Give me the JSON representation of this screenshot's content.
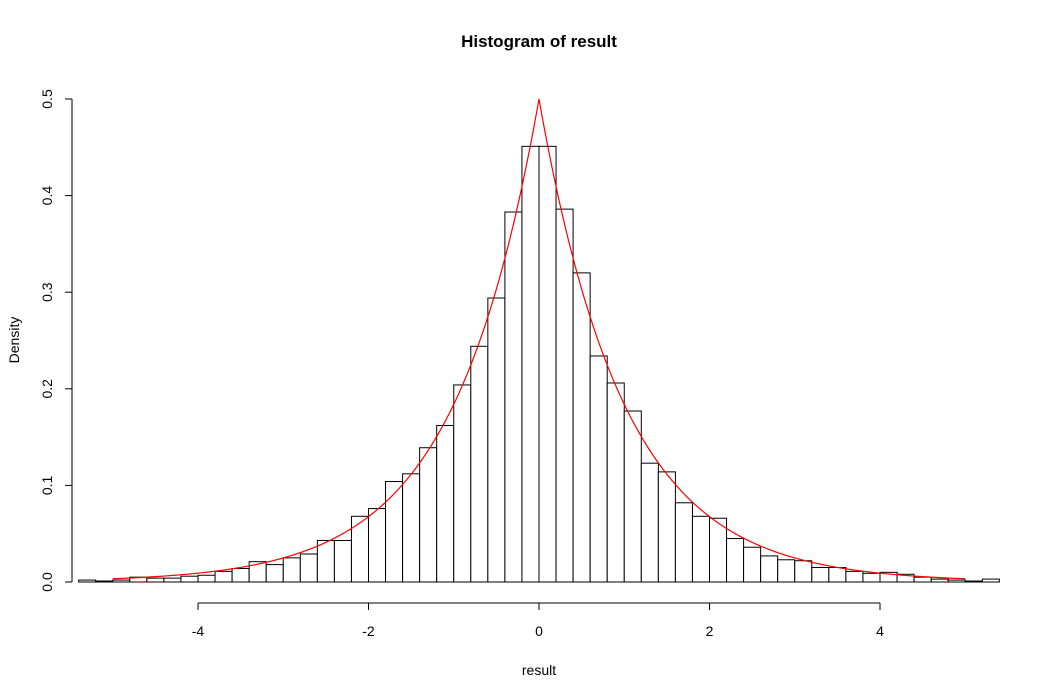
{
  "chart_data": {
    "type": "bar",
    "subtype": "histogram",
    "title": "Histogram of result",
    "xlabel": "result",
    "ylabel": "Density",
    "xlim": [
      -5.4,
      5.4
    ],
    "ylim": [
      0,
      0.5
    ],
    "xticks": [
      -4,
      -2,
      0,
      2,
      4
    ],
    "xtick_labels": [
      "-4",
      "-2",
      "0",
      "2",
      "4"
    ],
    "yticks": [
      0.0,
      0.1,
      0.2,
      0.3,
      0.4,
      0.5
    ],
    "ytick_labels": [
      "0.0",
      "0.1",
      "0.2",
      "0.3",
      "0.4",
      "0.5"
    ],
    "bin_width": 0.2,
    "bin_start": -5.4,
    "densities": [
      0.002,
      0.001,
      0.002,
      0.005,
      0.004,
      0.004,
      0.006,
      0.007,
      0.011,
      0.014,
      0.021,
      0.018,
      0.025,
      0.029,
      0.043,
      0.043,
      0.068,
      0.076,
      0.104,
      0.112,
      0.139,
      0.162,
      0.204,
      0.244,
      0.294,
      0.383,
      0.451,
      0.451,
      0.386,
      0.32,
      0.234,
      0.206,
      0.177,
      0.123,
      0.114,
      0.082,
      0.068,
      0.066,
      0.045,
      0.036,
      0.027,
      0.023,
      0.022,
      0.015,
      0.015,
      0.011,
      0.009,
      0.01,
      0.008,
      0.005,
      0.003,
      0.002,
      0.001,
      0.003
    ],
    "density_curve": {
      "function": "0.5 * exp(-|x|)",
      "color": "#ff0000"
    },
    "grid": false,
    "legend": false
  }
}
